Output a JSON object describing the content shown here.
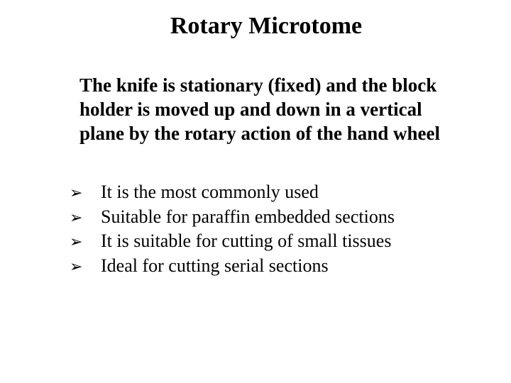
{
  "slide": {
    "title": "Rotary Microtome",
    "description": "The knife is stationary (fixed) and the block holder is moved up and down in a vertical plane by the rotary action of the hand wheel",
    "bullets": [
      "It is the most commonly used",
      "Suitable for paraffin embedded sections",
      "It is suitable for cutting of small tissues",
      "Ideal for cutting serial sections"
    ]
  },
  "style": {
    "background_color": "#ffffff",
    "text_color": "#000000",
    "font_family": "Times New Roman",
    "title_fontsize": 34,
    "title_weight": "bold",
    "description_fontsize": 27,
    "description_weight": "bold",
    "bullet_fontsize": 26,
    "bullet_weight": "normal",
    "bullet_marker": "➢",
    "bullet_marker_color": "#000000"
  }
}
